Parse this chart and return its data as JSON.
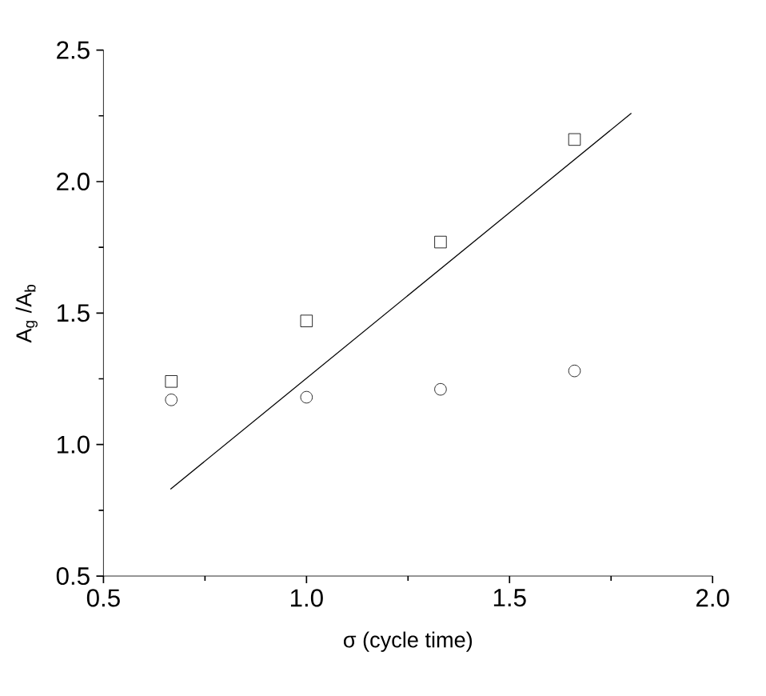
{
  "chart_data": {
    "type": "scatter",
    "xlabel": "σ (cycle time)",
    "ylabel": "A$_{g}$ /A$_{b}$",
    "xlim": [
      0.5,
      2.0
    ],
    "ylim": [
      0.5,
      2.5
    ],
    "xticks": [
      0.5,
      {
        "value": 1,
        "label": "1.0"
      },
      1.5,
      {
        "value": 2,
        "label": "2.0"
      }
    ],
    "yticks": [
      0.5,
      {
        "value": 1,
        "label": "1.0"
      },
      1.5,
      {
        "value": 2,
        "label": "2.0"
      },
      2.5
    ],
    "grid": false,
    "series": [
      {
        "marker": "square",
        "color": "#000000",
        "x": [
          0.667,
          1.0,
          1.33,
          1.66
        ],
        "values": [
          1.24,
          1.47,
          1.77,
          2.16
        ]
      },
      {
        "marker": "circle",
        "color": "#000000",
        "x": [
          0.667,
          1.0,
          1.33,
          1.66
        ],
        "values": [
          1.17,
          1.18,
          1.21,
          1.28
        ]
      },
      {
        "type": "line",
        "marker": "none",
        "color": "#000000",
        "x": [
          0.665,
          1.8
        ],
        "values": [
          0.83,
          2.26
        ]
      }
    ]
  }
}
